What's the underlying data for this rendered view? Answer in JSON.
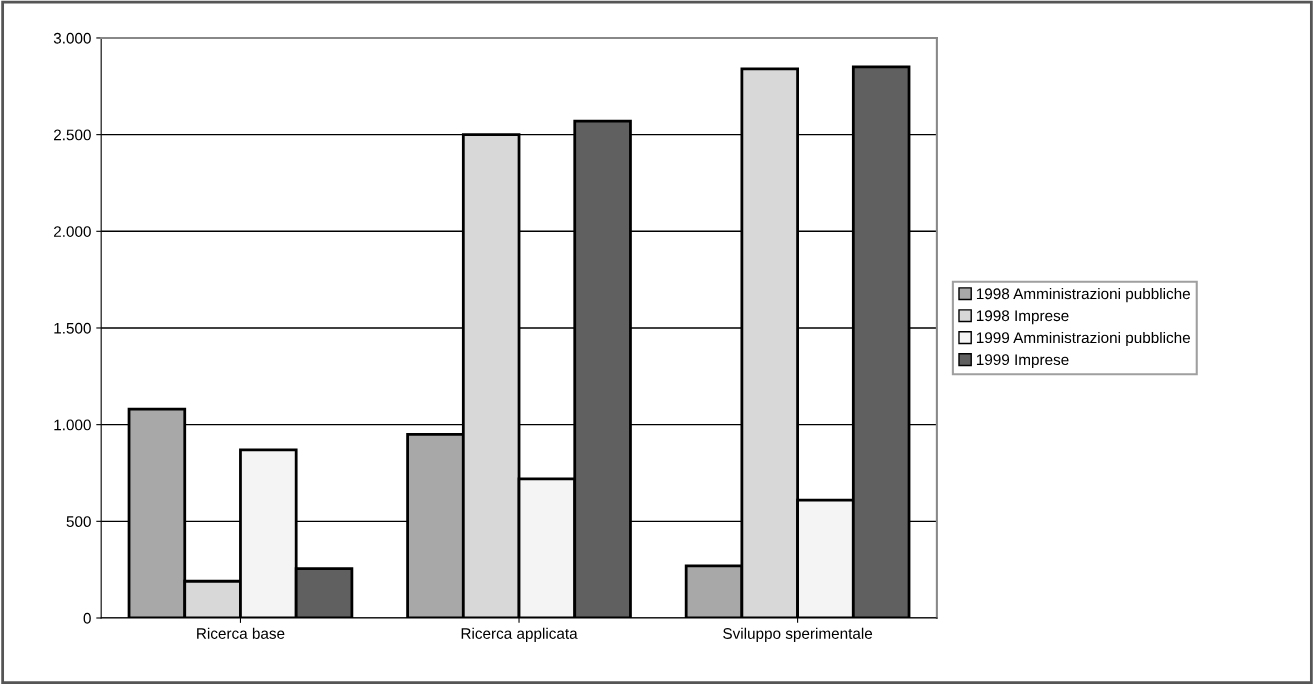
{
  "chart_data": {
    "type": "bar",
    "categories": [
      "Ricerca base",
      "Ricerca applicata",
      "Sviluppo sperimentale"
    ],
    "series": [
      {
        "name": "1998 Amministrazioni pubbliche",
        "color": "#a8a8a8",
        "values": [
          1080,
          950,
          270
        ]
      },
      {
        "name": "1998 Imprese",
        "color": "#d8d8d8",
        "values": [
          190,
          2500,
          2840
        ]
      },
      {
        "name": "1999 Amministrazioni pubbliche",
        "color": "#f4f4f4",
        "values": [
          870,
          720,
          610
        ]
      },
      {
        "name": "1999 Imprese",
        "color": "#606060",
        "values": [
          255,
          2570,
          2850
        ]
      }
    ],
    "ylim": [
      0,
      3000
    ],
    "yticks": [
      0,
      {
        "value": 500,
        "label": "500"
      },
      {
        "value": 1000,
        "label": "1.000"
      },
      {
        "value": 1500,
        "label": "1.500"
      },
      {
        "value": 2000,
        "label": "2.000"
      },
      {
        "value": 2500,
        "label": "2.500"
      },
      {
        "value": 3000,
        "label": "3.000"
      }
    ],
    "grid": "y",
    "legend": "right"
  }
}
